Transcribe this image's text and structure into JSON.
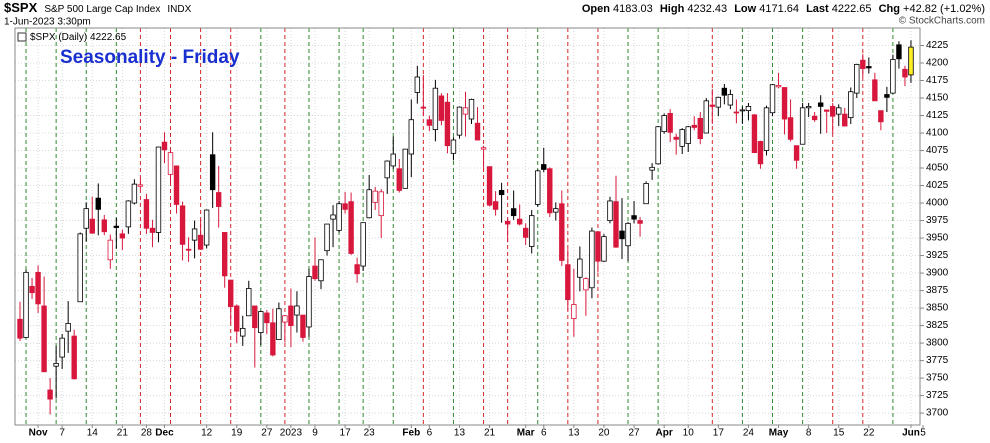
{
  "header": {
    "symbol": "$SPX",
    "name": "S&P 500 Large Cap Index",
    "exchange": "INDX",
    "timestamp": "1-Jun-2023 3:30pm",
    "open_label": "Open",
    "high_label": "High",
    "low_label": "Low",
    "last_label": "Last",
    "chg_label": "Chg",
    "change": "+42.82 (+1.02%)",
    "credit": "© StockCharts.com"
  },
  "chart_data": {
    "type": "candlestick",
    "title": "Seasonality - Friday",
    "legend_label": "$SPX (Daily)",
    "up_color": "#000000",
    "down_color": "#d8173c",
    "highlight_color": "#ffee22",
    "friday_up_color": "#2e8b2e",
    "friday_down_color": "#d62728",
    "grid": true,
    "ylim": [
      3683,
      4250
    ],
    "yticks": [
      3700,
      3725,
      3750,
      3775,
      3800,
      3825,
      3850,
      3875,
      3900,
      3925,
      3950,
      3975,
      4000,
      4025,
      4050,
      4075,
      4100,
      4125,
      4150,
      4175,
      4200,
      4225
    ],
    "xticks": [
      {
        "value": "2022-11-01",
        "label": "Nov"
      },
      {
        "value": "2022-11-07",
        "label": "7"
      },
      {
        "value": "2022-11-14",
        "label": "14"
      },
      {
        "value": "2022-11-21",
        "label": "21"
      },
      {
        "value": "2022-11-28",
        "label": "28"
      },
      {
        "value": "2022-12-01",
        "label": "Dec"
      },
      {
        "value": "2022-12-12",
        "label": "12"
      },
      {
        "value": "2022-12-19",
        "label": "19"
      },
      {
        "value": "2022-12-27",
        "label": "27"
      },
      {
        "value": "2023-01-03",
        "label": "2023"
      },
      {
        "value": "2023-01-09",
        "label": "9"
      },
      {
        "value": "2023-01-17",
        "label": "17"
      },
      {
        "value": "2023-01-23",
        "label": "23"
      },
      {
        "value": "2023-02-01",
        "label": "Feb"
      },
      {
        "value": "2023-02-06",
        "label": "6"
      },
      {
        "value": "2023-02-13",
        "label": "13"
      },
      {
        "value": "2023-02-21",
        "label": "21"
      },
      {
        "value": "2023-03-01",
        "label": "Mar"
      },
      {
        "value": "2023-03-06",
        "label": "6"
      },
      {
        "value": "2023-03-13",
        "label": "13"
      },
      {
        "value": "2023-03-20",
        "label": "20"
      },
      {
        "value": "2023-03-27",
        "label": "27"
      },
      {
        "value": "2023-04-03",
        "label": "Apr"
      },
      {
        "value": "2023-04-10",
        "label": "10"
      },
      {
        "value": "2023-04-17",
        "label": "17"
      },
      {
        "value": "2023-04-24",
        "label": "24"
      },
      {
        "value": "2023-05-01",
        "label": "May"
      },
      {
        "value": "2023-05-08",
        "label": "8"
      },
      {
        "value": "2023-05-15",
        "label": "15"
      },
      {
        "value": "2023-05-22",
        "label": "22"
      },
      {
        "value": "2023-06-01",
        "label": "Jun"
      },
      {
        "value": "2023-06-05",
        "label": "5"
      }
    ],
    "x": [
      "2022-10-27",
      "2022-10-28",
      "2022-10-31",
      "2022-11-01",
      "2022-11-02",
      "2022-11-03",
      "2022-11-04",
      "2022-11-07",
      "2022-11-08",
      "2022-11-09",
      "2022-11-10",
      "2022-11-11",
      "2022-11-14",
      "2022-11-15",
      "2022-11-16",
      "2022-11-17",
      "2022-11-18",
      "2022-11-21",
      "2022-11-22",
      "2022-11-23",
      "2022-11-25",
      "2022-11-28",
      "2022-11-29",
      "2022-11-30",
      "2022-12-01",
      "2022-12-02",
      "2022-12-05",
      "2022-12-06",
      "2022-12-07",
      "2022-12-08",
      "2022-12-09",
      "2022-12-12",
      "2022-12-13",
      "2022-12-14",
      "2022-12-15",
      "2022-12-16",
      "2022-12-19",
      "2022-12-20",
      "2022-12-21",
      "2022-12-22",
      "2022-12-23",
      "2022-12-27",
      "2022-12-28",
      "2022-12-29",
      "2022-12-30",
      "2023-01-03",
      "2023-01-04",
      "2023-01-05",
      "2023-01-06",
      "2023-01-09",
      "2023-01-10",
      "2023-01-11",
      "2023-01-12",
      "2023-01-13",
      "2023-01-17",
      "2023-01-18",
      "2023-01-19",
      "2023-01-20",
      "2023-01-23",
      "2023-01-24",
      "2023-01-25",
      "2023-01-26",
      "2023-01-27",
      "2023-01-30",
      "2023-01-31",
      "2023-02-01",
      "2023-02-02",
      "2023-02-03",
      "2023-02-06",
      "2023-02-07",
      "2023-02-08",
      "2023-02-09",
      "2023-02-10",
      "2023-02-13",
      "2023-02-14",
      "2023-02-15",
      "2023-02-16",
      "2023-02-17",
      "2023-02-21",
      "2023-02-22",
      "2023-02-23",
      "2023-02-24",
      "2023-02-27",
      "2023-02-28",
      "2023-03-01",
      "2023-03-02",
      "2023-03-03",
      "2023-03-06",
      "2023-03-07",
      "2023-03-08",
      "2023-03-09",
      "2023-03-10",
      "2023-03-13",
      "2023-03-14",
      "2023-03-15",
      "2023-03-16",
      "2023-03-17",
      "2023-03-20",
      "2023-03-21",
      "2023-03-22",
      "2023-03-23",
      "2023-03-24",
      "2023-03-27",
      "2023-03-28",
      "2023-03-29",
      "2023-03-30",
      "2023-03-31",
      "2023-04-03",
      "2023-04-04",
      "2023-04-05",
      "2023-04-06",
      "2023-04-10",
      "2023-04-11",
      "2023-04-12",
      "2023-04-13",
      "2023-04-14",
      "2023-04-17",
      "2023-04-18",
      "2023-04-19",
      "2023-04-20",
      "2023-04-21",
      "2023-04-24",
      "2023-04-25",
      "2023-04-26",
      "2023-04-27",
      "2023-04-28",
      "2023-05-01",
      "2023-05-02",
      "2023-05-03",
      "2023-05-04",
      "2023-05-05",
      "2023-05-08",
      "2023-05-09",
      "2023-05-10",
      "2023-05-11",
      "2023-05-12",
      "2023-05-15",
      "2023-05-16",
      "2023-05-17",
      "2023-05-18",
      "2023-05-19",
      "2023-05-22",
      "2023-05-23",
      "2023-05-24",
      "2023-05-25",
      "2023-05-26",
      "2023-05-30",
      "2023-05-31",
      "2023-06-01"
    ],
    "open": [
      3834,
      3808,
      3881,
      3901,
      3853,
      3733,
      3767,
      3780,
      3817,
      3810,
      3859,
      3964,
      3977,
      4007,
      3976,
      3919,
      3967,
      3956,
      3966,
      4000,
      4024,
      4005,
      3964,
      3958,
      4087,
      4041,
      4053,
      3996,
      3934,
      3947,
      3954,
      3940,
      4069,
      4015,
      3958,
      3890,
      3853,
      3810,
      3839,
      3853,
      3815,
      3843,
      3829,
      3805,
      3830,
      3853,
      3840,
      3840,
      3823,
      3910,
      3889,
      3932,
      3977,
      3961,
      3999,
      4002,
      3912,
      3910,
      3979,
      4001,
      3982,
      4036,
      4053,
      4049,
      4021,
      4070,
      4158,
      4137,
      4119,
      4105,
      4153,
      4144,
      4071,
      4097,
      4127,
      4120,
      4114,
      4077,
      4052,
      4002,
      4018,
      3974,
      3992,
      3977,
      3964,
      3938,
      3998,
      4055,
      4049,
      3987,
      3999,
      3912,
      3835,
      3894,
      3876,
      3879,
      3959,
      3917,
      3975,
      4002,
      3960,
      3939,
      3982,
      3975,
      3999,
      4047,
      4056,
      4102,
      4128,
      4094,
      4081,
      4085,
      4111,
      4121,
      4100,
      4140,
      4137,
      4164,
      4140,
      4130,
      4132,
      4132,
      4126,
      4088,
      4075,
      4129,
      4166,
      4165,
      4122,
      4082,
      4084,
      4136,
      4124,
      4143,
      4133,
      4138,
      4127,
      4127,
      4122,
      4157,
      4204,
      4195,
      4176,
      4132,
      4155,
      4157,
      4226,
      4191,
      4183.03
    ],
    "high": [
      3859,
      3905,
      3893,
      3911,
      3895,
      3750,
      3796,
      3813,
      3860,
      3819,
      3958,
      4001,
      4009,
      4028,
      3983,
      3955,
      3979,
      3962,
      4004,
      4034,
      4035,
      4013,
      3976,
      4080,
      4101,
      4077,
      4053,
      4002,
      3951,
      3975,
      3977,
      3991,
      4101,
      4053,
      3958,
      3890,
      3855,
      3839,
      3889,
      3853,
      3846,
      3847,
      3849,
      3858,
      3840,
      3878,
      3874,
      3840,
      3906,
      3951,
      3919,
      3970,
      3997,
      4003,
      4016,
      4015,
      3922,
      3972,
      4040,
      4023,
      4020,
      4061,
      4095,
      4063,
      4077,
      4148,
      4196,
      4183,
      4125,
      4176,
      4157,
      4157,
      4094,
      4138,
      4159,
      4149,
      4137,
      4082,
      4052,
      4017,
      4029,
      3979,
      4018,
      3998,
      3971,
      3990,
      4048,
      4079,
      4051,
      4001,
      4018,
      3934,
      3906,
      3938,
      3894,
      3965,
      3959,
      3956,
      4009,
      4039,
      4007,
      3973,
      4003,
      3980,
      4031,
      4057,
      4110,
      4128,
      4134,
      4099,
      4107,
      4110,
      4124,
      4130,
      4150,
      4163,
      4152,
      4170,
      4162,
      4148,
      4138,
      4143,
      4127,
      4089,
      4139,
      4170,
      4186,
      4165,
      4148,
      4082,
      4143,
      4143,
      4130,
      4154,
      4133,
      4143,
      4141,
      4136,
      4165,
      4199,
      4213,
      4208,
      4186,
      4132,
      4166,
      4212,
      4231,
      4196,
      4232.43
    ],
    "low": [
      3803,
      3808,
      3863,
      3843,
      3759,
      3698,
      3721,
      3763,
      3786,
      3748,
      3859,
      3945,
      3956,
      3954,
      3954,
      3906,
      3935,
      3933,
      3956,
      3998,
      4019,
      3956,
      3937,
      3944,
      4057,
      4027,
      3985,
      3918,
      3916,
      3921,
      3933,
      3935,
      3993,
      3965,
      3879,
      3828,
      3800,
      3796,
      3839,
      3765,
      3797,
      3813,
      3781,
      3805,
      3801,
      3794,
      3815,
      3802,
      3809,
      3889,
      3877,
      3925,
      3937,
      3958,
      3985,
      3926,
      3886,
      3903,
      3978,
      3990,
      3950,
      4013,
      4049,
      4015,
      4021,
      4037,
      4142,
      4124,
      4103,
      4088,
      4111,
      4071,
      4061,
      4092,
      4095,
      4113,
      4090,
      4048,
      3995,
      3982,
      3972,
      3944,
      3976,
      3968,
      3940,
      3928,
      3995,
      4044,
      3980,
      3975,
      3910,
      3846,
      3809,
      3874,
      3839,
      3864,
      3901,
      3916,
      3971,
      3936,
      3920,
      3917,
      3971,
      3952,
      3999,
      4033,
      4056,
      4099,
      4087,
      4069,
      4070,
      4073,
      4104,
      4084,
      4100,
      4113,
      4124,
      4141,
      4134,
      4114,
      4113,
      4118,
      4072,
      4049,
      4068,
      4124,
      4164,
      4098,
      4088,
      4049,
      4084,
      4123,
      4116,
      4099,
      4100,
      4099,
      4110,
      4110,
      4113,
      4150,
      4180,
      4185,
      4146,
      4104,
      4130,
      4156,
      4192,
      4167,
      4171.64
    ],
    "close": [
      3807,
      3901,
      3872,
      3856,
      3759,
      3720,
      3771,
      3807,
      3828,
      3749,
      3956,
      3992,
      3957,
      3991,
      3959,
      3947,
      3965,
      3950,
      4003,
      4027,
      4026,
      3964,
      3958,
      4080,
      4076,
      4072,
      3998,
      3941,
      3933,
      3963,
      3934,
      3990,
      4019,
      3995,
      3896,
      3852,
      3817,
      3821,
      3878,
      3822,
      3845,
      3829,
      3783,
      3849,
      3839,
      3825,
      3853,
      3808,
      3895,
      3892,
      3919,
      3970,
      3983,
      3999,
      3991,
      3928,
      3899,
      3972,
      4019,
      4017,
      4016,
      4060,
      4070,
      4018,
      4077,
      4119,
      4180,
      4136,
      4111,
      4164,
      4118,
      4082,
      4090,
      4137,
      4136,
      4148,
      4090,
      4079,
      3997,
      3991,
      4012,
      3970,
      3982,
      3970,
      3951,
      3982,
      4046,
      4048,
      3986,
      3992,
      3918,
      3862,
      3855,
      3920,
      3892,
      3960,
      3917,
      3952,
      4003,
      3937,
      3949,
      3971,
      3977,
      3971,
      4028,
      4051,
      4109,
      4125,
      4101,
      4091,
      4105,
      4109,
      4108,
      4092,
      4146,
      4138,
      4151,
      4154,
      4155,
      4130,
      4133,
      4138,
      4072,
      4056,
      4136,
      4169,
      4168,
      4120,
      4091,
      4061,
      4136,
      4138,
      4119,
      4138,
      4131,
      4124,
      4136,
      4110,
      4159,
      4198,
      4192,
      4193,
      4146,
      4116,
      4151,
      4205,
      4206,
      4180,
      4222.65
    ]
  }
}
